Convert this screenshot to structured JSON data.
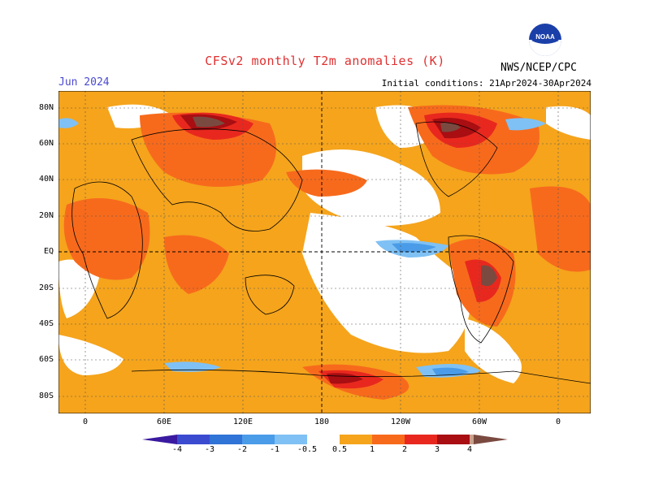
{
  "title": "CFSv2 monthly T2m anomalies (K)",
  "valid_month": "Jun 2024",
  "agency": "NWS/NCEP/CPC",
  "initial_conditions": "Initial conditions: 21Apr2024-30Apr2024",
  "logo_text": "NOAA",
  "lat_labels": [
    "80N",
    "60N",
    "40N",
    "20N",
    "EQ",
    "20S",
    "40S",
    "60S",
    "80S"
  ],
  "lon_labels": [
    "0",
    "60E",
    "120E",
    "180",
    "120W",
    "60W",
    "0"
  ],
  "colorbar": {
    "ticks": [
      "-4",
      "-3",
      "-2",
      "-1",
      "-0.5",
      "0.5",
      "1",
      "2",
      "3",
      "4"
    ],
    "colors": [
      "#3a1aa0",
      "#3a4bd0",
      "#2f74d6",
      "#4a9ce8",
      "#7fc1f4",
      "#ffffff",
      "#f5a41c",
      "#f76a1c",
      "#e8281e",
      "#a80e12",
      "#c9a08c",
      "#7a4a40"
    ]
  },
  "colors": {
    "orange": "#f5a41c",
    "red_orange": "#f76a1c",
    "red": "#e8281e",
    "dark_red": "#a80e12",
    "tan": "#c9a08c",
    "brown": "#7a4a40",
    "light_blue": "#7fc1f4",
    "blue": "#4a9ce8"
  }
}
